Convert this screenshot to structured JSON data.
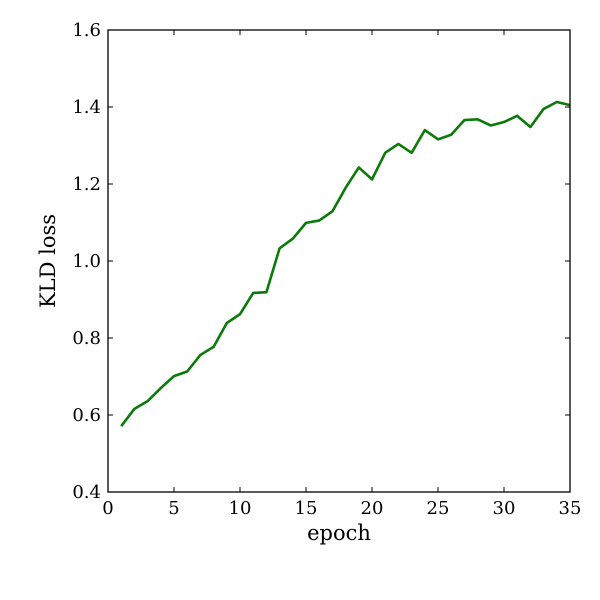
{
  "chart_data": {
    "type": "line",
    "title": "",
    "xlabel": "epoch",
    "ylabel": "KLD loss",
    "xlim": [
      0,
      35
    ],
    "ylim": [
      0.4,
      1.6
    ],
    "xticks": [
      0,
      5,
      10,
      15,
      20,
      25,
      30,
      35
    ],
    "yticks": [
      0.4,
      0.6,
      0.8,
      1.0,
      1.2,
      1.4,
      1.6
    ],
    "xtick_labels": [
      "0",
      "5",
      "10",
      "15",
      "20",
      "25",
      "30",
      "35"
    ],
    "ytick_labels": [
      "0.4",
      "0.6",
      "0.8",
      "1.0",
      "1.2",
      "1.4",
      "1.6"
    ],
    "grid": false,
    "series": [
      {
        "color": "#0a7a0a",
        "x": [
          1,
          2,
          3,
          4,
          5,
          6,
          7,
          8,
          9,
          10,
          11,
          12,
          13,
          14,
          15,
          16,
          17,
          18,
          19,
          20,
          21,
          22,
          23,
          24,
          25,
          26,
          27,
          28,
          29,
          30,
          31,
          32,
          33,
          34,
          35
        ],
        "y": [
          0.571,
          0.616,
          0.636,
          0.67,
          0.701,
          0.713,
          0.756,
          0.777,
          0.839,
          0.862,
          0.917,
          0.919,
          1.033,
          1.058,
          1.099,
          1.105,
          1.129,
          1.19,
          1.243,
          1.212,
          1.281,
          1.304,
          1.281,
          1.34,
          1.316,
          1.328,
          1.366,
          1.368,
          1.352,
          1.361,
          1.377,
          1.348,
          1.395,
          1.413,
          1.405
        ]
      }
    ]
  }
}
